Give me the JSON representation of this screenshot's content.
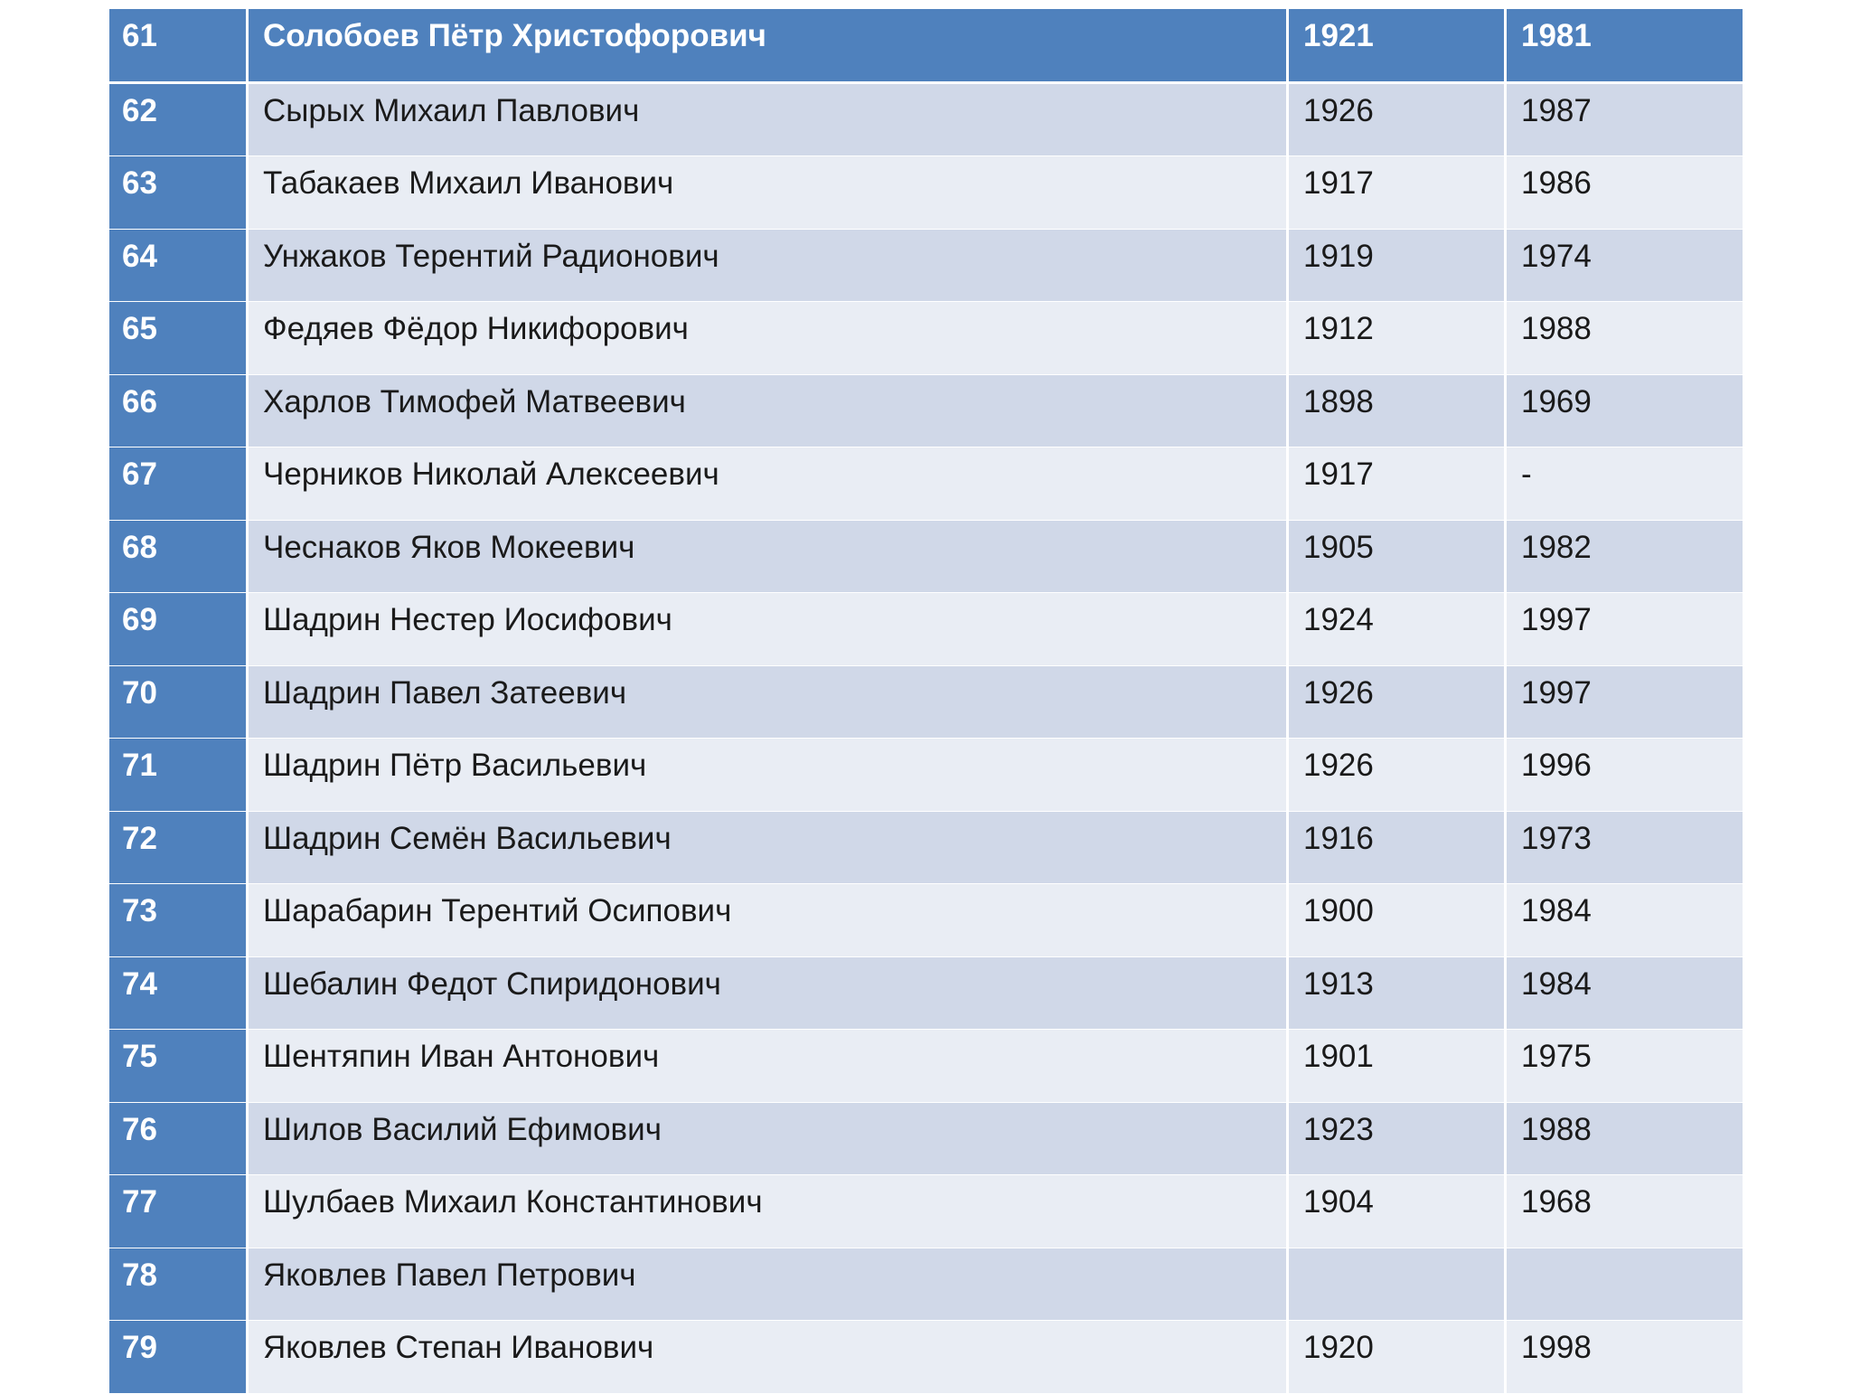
{
  "table": {
    "rows": [
      {
        "num": "61",
        "name": "Солобоев Пётр Христофорович",
        "born": "1921",
        "died": "1981"
      },
      {
        "num": "62",
        "name": "Сырых Михаил Павлович",
        "born": "1926",
        "died": "1987"
      },
      {
        "num": "63",
        "name": "Табакаев Михаил Иванович",
        "born": "1917",
        "died": "1986"
      },
      {
        "num": "64",
        "name": "Унжаков Терентий Радионович",
        "born": "1919",
        "died": "1974"
      },
      {
        "num": "65",
        "name": "Федяев Фёдор Никифорович",
        "born": "1912",
        "died": "1988"
      },
      {
        "num": "66",
        "name": "Харлов Тимофей Матвеевич",
        "born": "1898",
        "died": "1969"
      },
      {
        "num": "67",
        "name": "Черников Николай Алексеевич",
        "born": "1917",
        "died": "-"
      },
      {
        "num": "68",
        "name": "Чеснаков Яков Мокеевич",
        "born": "1905",
        "died": "1982"
      },
      {
        "num": "69",
        "name": "Шадрин Нестер Иосифович",
        "born": "1924",
        "died": "1997"
      },
      {
        "num": "70",
        "name": "Шадрин Павел Затеевич",
        "born": "1926",
        "died": "1997"
      },
      {
        "num": "71",
        "name": "Шадрин Пётр Васильевич",
        "born": "1926",
        "died": "1996"
      },
      {
        "num": "72",
        "name": "Шадрин Семён Васильевич",
        "born": "1916",
        "died": "1973"
      },
      {
        "num": "73",
        "name": "Шарабарин Терентий Осипович",
        "born": "1900",
        "died": "1984"
      },
      {
        "num": "74",
        "name": "Шебалин Федот Спиридонович",
        "born": "1913",
        "died": "1984"
      },
      {
        "num": "75",
        "name": "Шентяпин Иван Антонович",
        "born": "1901",
        "died": "1975"
      },
      {
        "num": "76",
        "name": "Шилов Василий Ефимович",
        "born": "1923",
        "died": "1988"
      },
      {
        "num": "77",
        "name": "Шулбаев Михаил Константинович",
        "born": "1904",
        "died": "1968"
      },
      {
        "num": "78",
        "name": "Яковлев Павел Петрович",
        "born": "",
        "died": ""
      },
      {
        "num": "79",
        "name": "Яковлев Степан Иванович",
        "born": "1920",
        "died": "1998"
      }
    ]
  }
}
